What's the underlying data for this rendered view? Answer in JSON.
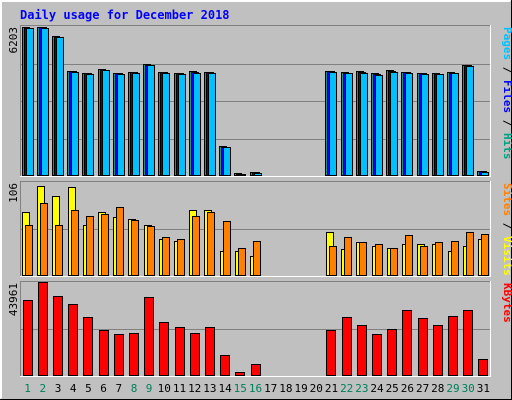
{
  "chart_data": {
    "type": "bar",
    "title": "Daily usage for December 2018",
    "categories": [
      "1",
      "2",
      "3",
      "4",
      "5",
      "6",
      "7",
      "8",
      "9",
      "10",
      "11",
      "12",
      "13",
      "14",
      "15",
      "16",
      "17",
      "18",
      "19",
      "20",
      "21",
      "22",
      "23",
      "24",
      "25",
      "26",
      "27",
      "28",
      "29",
      "30",
      "31"
    ],
    "weekend_days": [
      "1",
      "2",
      "8",
      "9",
      "15",
      "16",
      "22",
      "23",
      "29",
      "30"
    ],
    "panels": [
      {
        "id": "pages_files_hits",
        "max_label": "6203",
        "ymax": 6203,
        "right_label": [
          {
            "text": "Pages",
            "color": "#00C0FF"
          },
          {
            "text": " / ",
            "color": "#000000"
          },
          {
            "text": "Files",
            "color": "#0000FF"
          },
          {
            "text": " / ",
            "color": "#000000"
          },
          {
            "text": "Hits",
            "color": "#00A080"
          }
        ],
        "series": [
          {
            "name": "Hits",
            "color": "#00A080",
            "values": [
              6150,
              6180,
              5780,
              4350,
              4280,
              4420,
              4260,
              4310,
              4620,
              4320,
              4280,
              4330,
              4320,
              1230,
              110,
              160,
              0,
              0,
              0,
              0,
              4350,
              4290,
              4330,
              4240,
              4370,
              4310,
              4280,
              4250,
              4300,
              4590,
              210
            ]
          },
          {
            "name": "Files",
            "color": "#0000FF",
            "values": [
              6130,
              6160,
              5760,
              4330,
              4260,
              4400,
              4240,
              4290,
              4600,
              4300,
              4260,
              4310,
              4300,
              1210,
              100,
              150,
              0,
              0,
              0,
              0,
              4330,
              4270,
              4310,
              4220,
              4350,
              4290,
              4260,
              4230,
              4280,
              4570,
              200
            ]
          },
          {
            "name": "Pages",
            "color": "#00C0FF",
            "values": [
              6100,
              6130,
              5730,
              4300,
              4230,
              4370,
              4210,
              4260,
              4570,
              4270,
              4230,
              4280,
              4270,
              1190,
              90,
              130,
              0,
              0,
              0,
              0,
              4300,
              4240,
              4280,
              4190,
              4320,
              4260,
              4230,
              4200,
              4250,
              4540,
              180
            ]
          }
        ]
      },
      {
        "id": "visits_sites",
        "max_label": "106",
        "ymax": 106,
        "right_label": [
          {
            "text": "Sites",
            "color": "#FF8000"
          },
          {
            "text": " / ",
            "color": "#000000"
          },
          {
            "text": "Visits",
            "color": "#FFFF00"
          }
        ],
        "series": [
          {
            "name": "Visits",
            "color": "#FFFF00",
            "values": [
              72,
              102,
              90,
              100,
              58,
              72,
              66,
              64,
              58,
              42,
              40,
              74,
              74,
              28,
              28,
              22,
              0,
              0,
              0,
              0,
              50,
              30,
              38,
              34,
              32,
              36,
              36,
              36,
              28,
              34,
              42
            ]
          },
          {
            "name": "Sites",
            "color": "#FF8000",
            "values": [
              58,
              82,
              58,
              74,
              68,
              70,
              78,
              63,
              56,
              44,
              42,
              68,
              72,
              62,
              32,
              40,
              0,
              0,
              0,
              0,
              34,
              44,
              38,
              36,
              32,
              46,
              34,
              38,
              40,
              50,
              47
            ]
          }
        ]
      },
      {
        "id": "kbytes",
        "max_label": "43961",
        "ymax": 43961,
        "right_label": [
          {
            "text": "KBytes",
            "color": "#FF0000"
          }
        ],
        "series": [
          {
            "name": "KBytes",
            "color": "#FF0000",
            "values": [
              35500,
              43961,
              37500,
              33500,
              27800,
              21500,
              19800,
              20300,
              37000,
              25200,
              22700,
              20000,
              22700,
              9800,
              2100,
              5400,
              0,
              0,
              0,
              0,
              21300,
              27600,
              23900,
              19800,
              21900,
              31100,
              27200,
              23800,
              28200,
              30900,
              7800
            ]
          }
        ]
      }
    ]
  }
}
